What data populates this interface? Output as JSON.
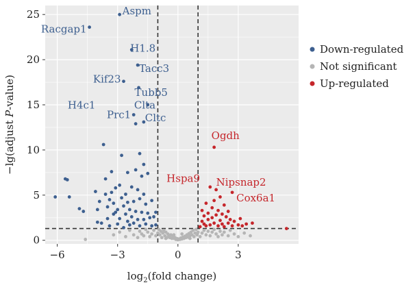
{
  "chart_data": {
    "type": "scatter",
    "title": "",
    "xlabel": {
      "prefix": "log",
      "sub": "2",
      "suffix": "(fold change)"
    },
    "ylabel": {
      "prefix": "−lg(adjust ",
      "italic": "P",
      "suffix": "-value)"
    },
    "xlim": [
      -6.6,
      6.0
    ],
    "ylim": [
      -0.4,
      26.0
    ],
    "xticks": [
      -6,
      -3,
      0,
      3
    ],
    "yticks": [
      0,
      5,
      10,
      15,
      20,
      25
    ],
    "grid": true,
    "thresholds": {
      "x": [
        -1,
        1
      ],
      "y": 1.3
    },
    "legend": {
      "position": "right",
      "entries": [
        {
          "name": "Down-regulated",
          "color": "#3d5f8f"
        },
        {
          "name": "Not significant",
          "color": "#b5b5b5"
        },
        {
          "name": "Up-regulated",
          "color": "#c5262b"
        }
      ]
    },
    "series": [
      {
        "name": "Down-regulated",
        "color": "#3d5f8f",
        "points": [
          [
            -6.1,
            4.8
          ],
          [
            -5.6,
            6.8
          ],
          [
            -5.5,
            6.7
          ],
          [
            -5.4,
            4.8
          ],
          [
            -4.9,
            3.5
          ],
          [
            -4.7,
            3.2
          ],
          [
            -4.4,
            23.6
          ],
          [
            -4.1,
            5.4
          ],
          [
            -4.0,
            3.4
          ],
          [
            -4.0,
            2.0
          ],
          [
            -3.9,
            4.3
          ],
          [
            -3.8,
            1.9
          ],
          [
            -3.7,
            10.6
          ],
          [
            -3.6,
            6.8
          ],
          [
            -3.6,
            5.1
          ],
          [
            -3.5,
            3.7
          ],
          [
            -3.5,
            2.4
          ],
          [
            -3.4,
            4.5
          ],
          [
            -3.4,
            1.6
          ],
          [
            -3.3,
            7.6
          ],
          [
            -3.3,
            5.3
          ],
          [
            -3.2,
            4.1
          ],
          [
            -3.2,
            2.9
          ],
          [
            -3.1,
            5.8
          ],
          [
            -3.1,
            3.1
          ],
          [
            -3.0,
            3.4
          ],
          [
            -3.0,
            1.8
          ],
          [
            -2.9,
            25.0
          ],
          [
            -2.9,
            6.1
          ],
          [
            -2.9,
            2.4
          ],
          [
            -2.8,
            9.4
          ],
          [
            -2.8,
            4.7
          ],
          [
            -2.7,
            17.6
          ],
          [
            -2.7,
            3.8
          ],
          [
            -2.7,
            1.4
          ],
          [
            -2.6,
            2.9
          ],
          [
            -2.6,
            5.1
          ],
          [
            -2.5,
            7.5
          ],
          [
            -2.5,
            4.2
          ],
          [
            -2.5,
            2.1
          ],
          [
            -2.4,
            3.4
          ],
          [
            -2.4,
            1.7
          ],
          [
            -2.3,
            21.1
          ],
          [
            -2.3,
            5.9
          ],
          [
            -2.3,
            2.6
          ],
          [
            -2.2,
            13.9
          ],
          [
            -2.2,
            4.3
          ],
          [
            -2.2,
            1.9
          ],
          [
            -2.1,
            12.9
          ],
          [
            -2.1,
            7.8
          ],
          [
            -2.1,
            3.2
          ],
          [
            -2.0,
            19.4
          ],
          [
            -2.0,
            5.6
          ],
          [
            -2.0,
            2.3
          ],
          [
            -1.95,
            16.9
          ],
          [
            -1.9,
            9.6
          ],
          [
            -1.9,
            4.6
          ],
          [
            -1.9,
            1.6
          ],
          [
            -1.8,
            7.1
          ],
          [
            -1.8,
            3.1
          ],
          [
            -1.7,
            13.1
          ],
          [
            -1.7,
            8.4
          ],
          [
            -1.7,
            5.1
          ],
          [
            -1.7,
            2.3
          ],
          [
            -1.6,
            4.0
          ],
          [
            -1.6,
            1.8
          ],
          [
            -1.5,
            15.0
          ],
          [
            -1.5,
            7.4
          ],
          [
            -1.5,
            3.0
          ],
          [
            -1.4,
            2.5
          ],
          [
            -1.3,
            4.4
          ],
          [
            -1.3,
            1.6
          ],
          [
            -1.2,
            2.6
          ],
          [
            -1.1,
            3.1
          ],
          [
            -1.1,
            1.7
          ]
        ]
      },
      {
        "name": "Not significant",
        "color": "#b5b5b5",
        "points": [
          [
            -4.6,
            0.1
          ],
          [
            -3.2,
            0.6
          ],
          [
            -2.9,
            0.9
          ],
          [
            -2.6,
            0.4
          ],
          [
            -2.4,
            1.1
          ],
          [
            -2.2,
            0.6
          ],
          [
            -2.0,
            0.3
          ],
          [
            -1.9,
            1.0
          ],
          [
            -1.8,
            0.7
          ],
          [
            -1.7,
            0.5
          ],
          [
            -1.6,
            1.2
          ],
          [
            -1.5,
            0.9
          ],
          [
            -1.4,
            0.4
          ],
          [
            -1.3,
            0.7
          ],
          [
            -1.2,
            1.1
          ],
          [
            -1.1,
            0.5
          ],
          [
            -1.0,
            0.8
          ],
          [
            -0.95,
            1.2
          ],
          [
            -0.9,
            0.6
          ],
          [
            -0.85,
            1.0
          ],
          [
            -0.8,
            0.3
          ],
          [
            -0.75,
            0.8
          ],
          [
            -0.7,
            1.1
          ],
          [
            -0.65,
            0.5
          ],
          [
            -0.6,
            0.9
          ],
          [
            -0.55,
            0.3
          ],
          [
            -0.5,
            0.7
          ],
          [
            -0.45,
            0.5
          ],
          [
            -0.4,
            0.3
          ],
          [
            -0.35,
            0.6
          ],
          [
            -0.3,
            0.2
          ],
          [
            -0.25,
            0.4
          ],
          [
            -0.2,
            0.2
          ],
          [
            -0.15,
            0.3
          ],
          [
            -0.1,
            0.1
          ],
          [
            -0.05,
            0.2
          ],
          [
            0.0,
            0.05
          ],
          [
            0.05,
            0.15
          ],
          [
            0.1,
            0.1
          ],
          [
            0.15,
            0.25
          ],
          [
            0.2,
            0.15
          ],
          [
            0.25,
            0.35
          ],
          [
            0.3,
            0.2
          ],
          [
            0.35,
            0.45
          ],
          [
            0.4,
            0.3
          ],
          [
            0.45,
            0.6
          ],
          [
            0.5,
            0.35
          ],
          [
            0.55,
            0.75
          ],
          [
            0.6,
            0.5
          ],
          [
            0.65,
            0.9
          ],
          [
            0.7,
            0.6
          ],
          [
            0.75,
            1.1
          ],
          [
            0.8,
            0.4
          ],
          [
            0.85,
            0.8
          ],
          [
            0.9,
            1.2
          ],
          [
            0.95,
            0.6
          ],
          [
            1.0,
            0.9
          ],
          [
            1.1,
            0.4
          ],
          [
            1.2,
            0.8
          ],
          [
            1.3,
            1.1
          ],
          [
            1.4,
            0.6
          ],
          [
            1.5,
            1.0
          ],
          [
            1.6,
            0.5
          ],
          [
            1.7,
            0.9
          ],
          [
            1.8,
            1.2
          ],
          [
            1.9,
            0.7
          ],
          [
            2.0,
            0.4
          ],
          [
            2.1,
            1.0
          ],
          [
            2.2,
            0.6
          ],
          [
            2.3,
            0.9
          ],
          [
            2.5,
            0.5
          ],
          [
            2.6,
            1.1
          ],
          [
            2.8,
            0.7
          ],
          [
            3.0,
            0.4
          ],
          [
            3.3,
            0.8
          ],
          [
            3.6,
            0.5
          ],
          [
            -0.2,
            0.6
          ],
          [
            0.2,
            0.7
          ],
          [
            -0.6,
            0.2
          ],
          [
            0.6,
            0.2
          ]
        ]
      },
      {
        "name": "Up-regulated",
        "color": "#c5262b",
        "points": [
          [
            1.1,
            1.5
          ],
          [
            1.2,
            2.1
          ],
          [
            1.2,
            3.3
          ],
          [
            1.3,
            1.8
          ],
          [
            1.3,
            2.7
          ],
          [
            1.4,
            1.6
          ],
          [
            1.4,
            4.1
          ],
          [
            1.5,
            2.3
          ],
          [
            1.5,
            3.0
          ],
          [
            1.6,
            1.7
          ],
          [
            1.6,
            5.9
          ],
          [
            1.7,
            2.5
          ],
          [
            1.7,
            3.6
          ],
          [
            1.8,
            1.9
          ],
          [
            1.8,
            4.4
          ],
          [
            1.8,
            10.3
          ],
          [
            1.9,
            2.8
          ],
          [
            1.9,
            5.6
          ],
          [
            2.0,
            1.6
          ],
          [
            2.0,
            3.3
          ],
          [
            2.1,
            2.2
          ],
          [
            2.1,
            4.8
          ],
          [
            2.2,
            1.8
          ],
          [
            2.2,
            2.9
          ],
          [
            2.3,
            3.9
          ],
          [
            2.3,
            1.5
          ],
          [
            2.4,
            2.6
          ],
          [
            2.5,
            1.9
          ],
          [
            2.5,
            3.2
          ],
          [
            2.6,
            2.3
          ],
          [
            2.7,
            5.3
          ],
          [
            2.7,
            1.6
          ],
          [
            2.8,
            2.1
          ],
          [
            3.0,
            1.7
          ],
          [
            3.1,
            2.4
          ],
          [
            3.2,
            1.6
          ],
          [
            3.4,
            1.8
          ],
          [
            3.7,
            1.9
          ],
          [
            5.4,
            1.3
          ]
        ]
      }
    ],
    "annotations": [
      {
        "text": "Aspm",
        "x": -2.9,
        "y": 25.0,
        "color": "#3d5f8f"
      },
      {
        "text": "Racgap1",
        "x": -4.4,
        "y": 23.6,
        "color": "#3d5f8f"
      },
      {
        "text": "H1.8",
        "x": -2.3,
        "y": 21.1,
        "color": "#3d5f8f"
      },
      {
        "text": "Tacc3",
        "x": -2.0,
        "y": 19.4,
        "color": "#3d5f8f"
      },
      {
        "text": "Kif23",
        "x": -2.7,
        "y": 17.6,
        "color": "#3d5f8f"
      },
      {
        "text": "Tubb5",
        "x": -1.95,
        "y": 16.9,
        "color": "#3d5f8f"
      },
      {
        "text": "Clta",
        "x": -1.7,
        "y": 15.8,
        "color": "#3d5f8f"
      },
      {
        "text": "H4c1",
        "x": -4.1,
        "y": 14.6,
        "color": "#3d5f8f"
      },
      {
        "text": "Prc1",
        "x": -2.2,
        "y": 13.9,
        "color": "#3d5f8f"
      },
      {
        "text": "Cltc",
        "x": -1.5,
        "y": 15.0,
        "color": "#3d5f8f"
      },
      {
        "text": "Ogdh",
        "x": 1.8,
        "y": 10.3,
        "color": "#c5262b"
      },
      {
        "text": "Hspa9",
        "x": 1.2,
        "y": 6.1,
        "color": "#c5262b"
      },
      {
        "text": "Nipsnap2",
        "x": 1.9,
        "y": 5.6,
        "color": "#c5262b"
      },
      {
        "text": "Cox6a1",
        "x": 2.7,
        "y": 5.3,
        "color": "#c5262b"
      }
    ]
  }
}
